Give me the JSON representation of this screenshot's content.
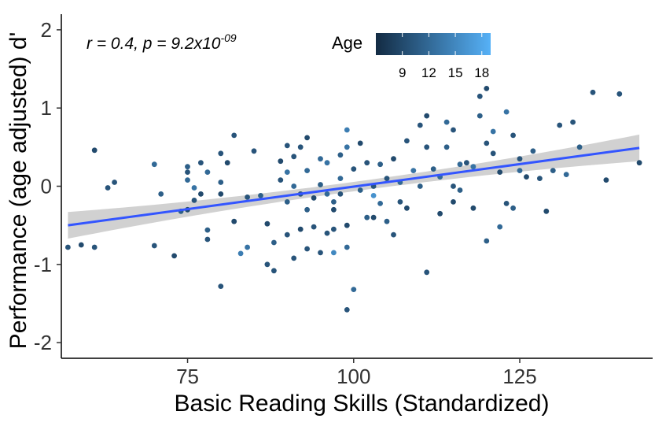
{
  "chart_data": {
    "type": "scatter",
    "xlabel": "Basic Reading Skills (Standardized)",
    "ylabel": "Performance (age adjusted) d'",
    "xlim": [
      56,
      145
    ],
    "ylim": [
      -2.2,
      2.2
    ],
    "x_ticks": [
      75,
      100,
      125
    ],
    "y_ticks": [
      -2,
      -1,
      0,
      1,
      2
    ],
    "x_tick_labels": [
      "75",
      "100",
      "125"
    ],
    "y_tick_labels": [
      "-2",
      "-1",
      "0",
      "1",
      "2"
    ],
    "grid": false,
    "annotation": {
      "prefix": "r = 0.4, p = 9.2x10",
      "exponent": "-09"
    },
    "legend": {
      "title": "Age",
      "placement": "top",
      "range": [
        6,
        19
      ],
      "ticks": [
        9,
        12,
        15,
        18
      ],
      "tick_labels": [
        "9",
        "12",
        "15",
        "18"
      ],
      "color_low": "#132B43",
      "color_high": "#56B1F7"
    },
    "fit": {
      "x_start": 57,
      "y_start": -0.5,
      "x_end": 143,
      "y_end": 0.49,
      "ci_halfwidth_ends": 0.17,
      "ci_halfwidth_center": 0.06,
      "x_center": 100,
      "line_color": "#3355FF",
      "ribbon_color": "#CCCCCC"
    },
    "points": [
      [
        57,
        -0.78,
        10
      ],
      [
        59,
        -0.75,
        9
      ],
      [
        61,
        -0.78,
        10
      ],
      [
        61,
        0.46,
        9
      ],
      [
        63,
        -0.02,
        10
      ],
      [
        64,
        0.05,
        10
      ],
      [
        70,
        0.28,
        12
      ],
      [
        70,
        -0.76,
        10
      ],
      [
        71,
        -0.1,
        11
      ],
      [
        73,
        -0.89,
        9
      ],
      [
        74,
        -0.32,
        11
      ],
      [
        75,
        0.18,
        10
      ],
      [
        75,
        -0.3,
        9
      ],
      [
        75,
        0.08,
        12
      ],
      [
        75,
        0.25,
        11
      ],
      [
        76,
        -0.02,
        13
      ],
      [
        76,
        -0.18,
        10
      ],
      [
        77,
        0.3,
        10
      ],
      [
        77,
        -0.1,
        9
      ],
      [
        78,
        0.18,
        12
      ],
      [
        78,
        -0.56,
        11
      ],
      [
        78,
        -0.68,
        10
      ],
      [
        80,
        -1.28,
        10
      ],
      [
        80,
        -0.1,
        9
      ],
      [
        80,
        0.42,
        10
      ],
      [
        80,
        0.05,
        11
      ],
      [
        81,
        0.3,
        9
      ],
      [
        82,
        0.65,
        10
      ],
      [
        82,
        -0.45,
        9
      ],
      [
        83,
        -0.86,
        14
      ],
      [
        84,
        -0.14,
        10
      ],
      [
        84,
        -0.78,
        13
      ],
      [
        85,
        0.45,
        10
      ],
      [
        86,
        -0.12,
        11
      ],
      [
        87,
        -1.0,
        10
      ],
      [
        87,
        -0.48,
        9
      ],
      [
        88,
        -1.08,
        10
      ],
      [
        88,
        -0.72,
        11
      ],
      [
        89,
        0.08,
        10
      ],
      [
        89,
        0.32,
        9
      ],
      [
        90,
        -0.62,
        10
      ],
      [
        90,
        0.18,
        13
      ],
      [
        90,
        0.52,
        10
      ],
      [
        90,
        -0.2,
        11
      ],
      [
        91,
        -0.92,
        10
      ],
      [
        91,
        0.0,
        12
      ],
      [
        91,
        0.38,
        10
      ],
      [
        92,
        -0.55,
        9
      ],
      [
        92,
        -0.1,
        10
      ],
      [
        92,
        0.5,
        10
      ],
      [
        93,
        -0.8,
        10
      ],
      [
        93,
        0.62,
        9
      ],
      [
        93,
        -0.3,
        11
      ],
      [
        93,
        0.2,
        12
      ],
      [
        94,
        -0.15,
        9
      ],
      [
        94,
        -0.52,
        10
      ],
      [
        95,
        -0.85,
        10
      ],
      [
        95,
        0.35,
        12
      ],
      [
        95,
        0.02,
        11
      ],
      [
        96,
        -0.1,
        12
      ],
      [
        96,
        -0.6,
        10
      ],
      [
        96,
        0.3,
        13
      ],
      [
        97,
        -0.85,
        15
      ],
      [
        97,
        -0.2,
        11
      ],
      [
        97,
        -0.55,
        10
      ],
      [
        97,
        -0.3,
        9
      ],
      [
        98,
        -0.1,
        10
      ],
      [
        98,
        0.1,
        12
      ],
      [
        98,
        0.4,
        11
      ],
      [
        99,
        -0.5,
        9
      ],
      [
        99,
        -1.58,
        10
      ],
      [
        99,
        -0.78,
        12
      ],
      [
        99,
        0.72,
        14
      ],
      [
        99,
        0.5,
        13
      ],
      [
        100,
        -1.32,
        12
      ],
      [
        100,
        0.22,
        10
      ],
      [
        101,
        -0.05,
        11
      ],
      [
        101,
        0.55,
        9
      ],
      [
        102,
        0.3,
        10
      ],
      [
        102,
        -0.4,
        11
      ],
      [
        103,
        -0.12,
        16
      ],
      [
        103,
        0.0,
        10
      ],
      [
        103,
        -0.4,
        9
      ],
      [
        104,
        0.28,
        11
      ],
      [
        104,
        -0.22,
        12
      ],
      [
        105,
        0.1,
        10
      ],
      [
        105,
        -0.45,
        11
      ],
      [
        106,
        0.35,
        9
      ],
      [
        106,
        -0.62,
        10
      ],
      [
        107,
        0.05,
        12
      ],
      [
        107,
        -0.2,
        10
      ],
      [
        108,
        -0.28,
        9
      ],
      [
        108,
        0.58,
        10
      ],
      [
        109,
        0.2,
        13
      ],
      [
        110,
        0.78,
        10
      ],
      [
        110,
        0.0,
        11
      ],
      [
        111,
        0.9,
        9
      ],
      [
        111,
        -1.1,
        10
      ],
      [
        111,
        0.5,
        10
      ],
      [
        112,
        0.22,
        11
      ],
      [
        113,
        -0.35,
        9
      ],
      [
        113,
        0.12,
        12
      ],
      [
        114,
        0.82,
        12
      ],
      [
        114,
        0.5,
        11
      ],
      [
        115,
        0.0,
        10
      ],
      [
        115,
        -0.2,
        9
      ],
      [
        115,
        0.72,
        10
      ],
      [
        116,
        0.28,
        12
      ],
      [
        116,
        -0.05,
        11
      ],
      [
        117,
        0.3,
        10
      ],
      [
        118,
        -0.28,
        9
      ],
      [
        118,
        0.25,
        13
      ],
      [
        119,
        1.15,
        10
      ],
      [
        119,
        0.9,
        11
      ],
      [
        120,
        1.25,
        9
      ],
      [
        120,
        0.55,
        10
      ],
      [
        120,
        -0.7,
        11
      ],
      [
        121,
        0.7,
        13
      ],
      [
        121,
        0.42,
        10
      ],
      [
        122,
        0.18,
        9
      ],
      [
        122,
        -0.52,
        12
      ],
      [
        123,
        0.95,
        13
      ],
      [
        123,
        -0.22,
        10
      ],
      [
        124,
        -0.28,
        11
      ],
      [
        124,
        0.65,
        10
      ],
      [
        125,
        0.2,
        12
      ],
      [
        125,
        0.35,
        10
      ],
      [
        126,
        0.12,
        9
      ],
      [
        127,
        0.45,
        11
      ],
      [
        128,
        0.1,
        10
      ],
      [
        129,
        -0.32,
        9
      ],
      [
        130,
        0.2,
        11
      ],
      [
        131,
        0.78,
        10
      ],
      [
        132,
        0.15,
        12
      ],
      [
        133,
        0.82,
        10
      ],
      [
        134,
        0.5,
        11
      ],
      [
        136,
        1.2,
        10
      ],
      [
        138,
        0.08,
        9
      ],
      [
        140,
        1.18,
        10
      ],
      [
        143,
        0.3,
        9
      ]
    ]
  }
}
